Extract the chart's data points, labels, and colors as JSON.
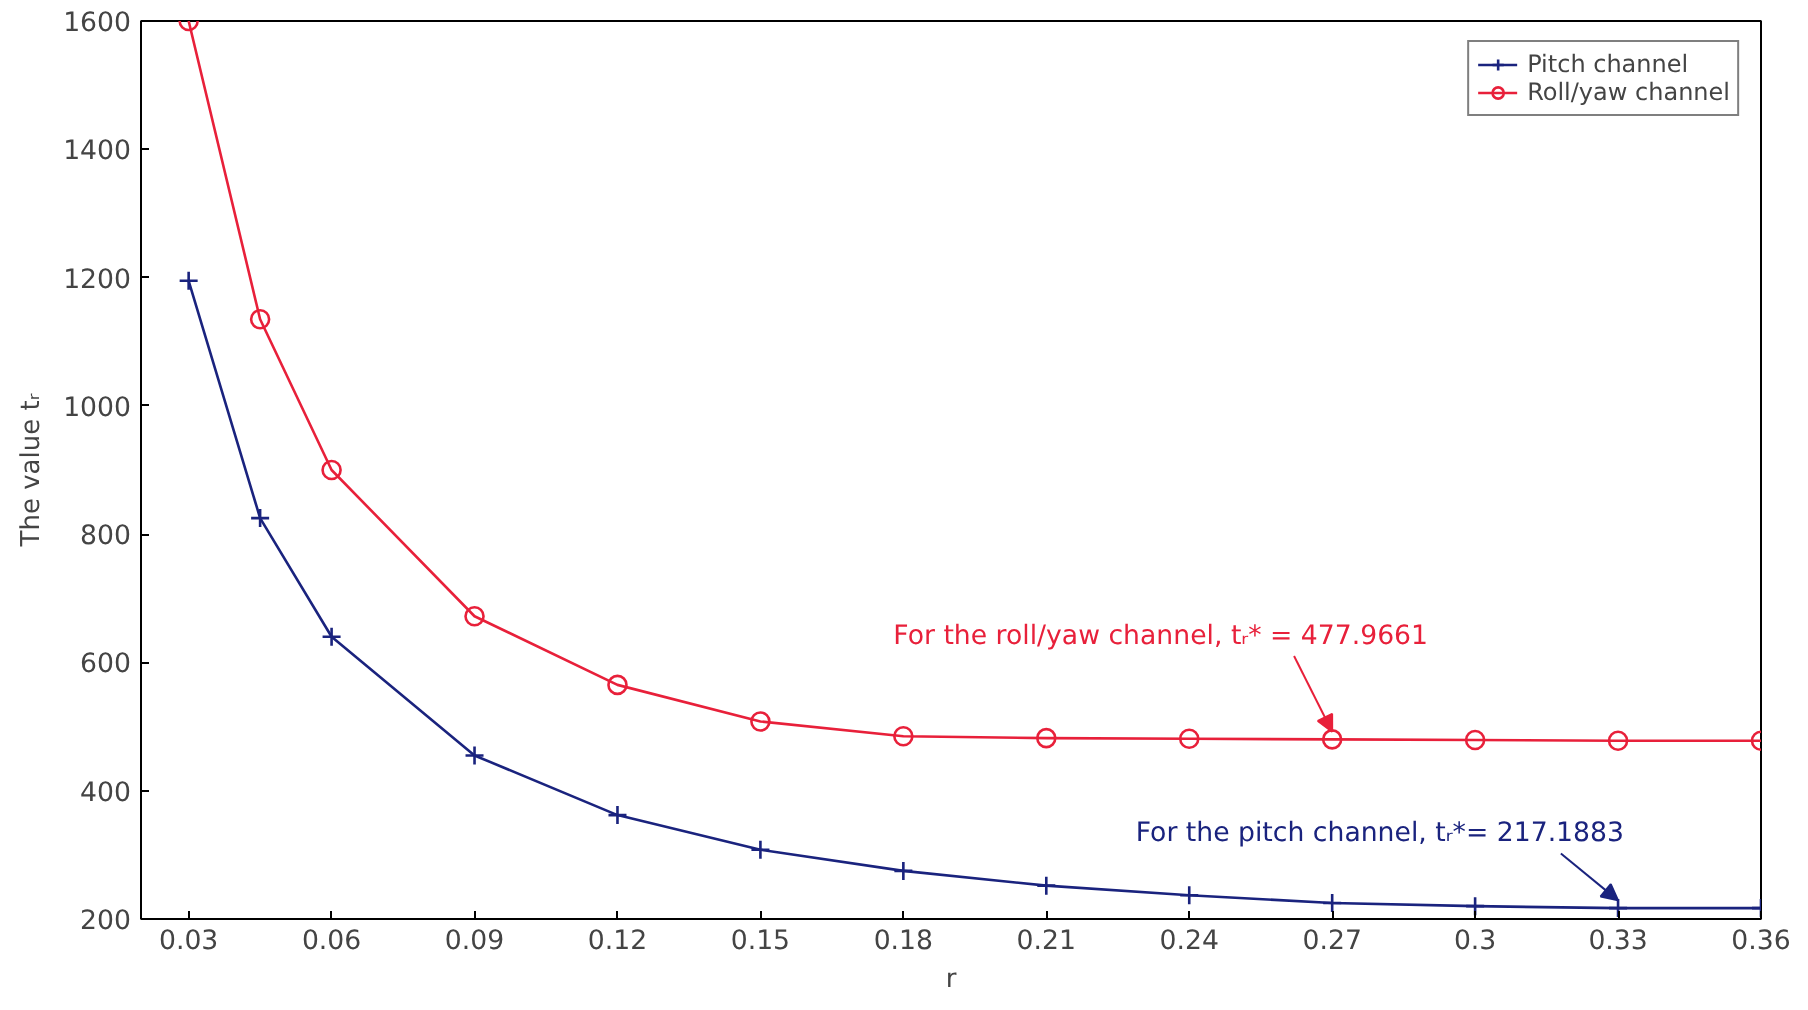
{
  "chart_data": {
    "type": "line",
    "xlabel": "r",
    "ylabel": "The value tᵣ",
    "x": [
      0.03,
      0.045,
      0.06,
      0.09,
      0.12,
      0.15,
      0.18,
      0.21,
      0.24,
      0.27,
      0.3,
      0.33,
      0.36
    ],
    "series": [
      {
        "name": "Pitch channel",
        "color": "#1a237e",
        "marker": "cross",
        "values": [
          1195,
          825,
          640,
          455,
          362,
          308,
          275,
          252,
          237,
          225,
          220,
          217,
          217
        ]
      },
      {
        "name": "Roll/yaw channel",
        "color": "#e8203a",
        "marker": "circle",
        "values": [
          1600,
          1135,
          900,
          672,
          565,
          508,
          485,
          482,
          481,
          480,
          479,
          478,
          478
        ]
      }
    ],
    "xlim": [
      0.02,
      0.36
    ],
    "ylim": [
      200,
      1600
    ],
    "xticks": [
      0.03,
      0.06,
      0.09,
      0.12,
      0.15,
      0.18,
      0.21,
      0.24,
      0.27,
      0.3,
      0.33,
      0.36
    ],
    "yticks": [
      200,
      400,
      600,
      800,
      1000,
      1200,
      1400,
      1600
    ],
    "annotations": [
      {
        "text": "For the roll/yaw channel, tᵣ* = 477.9661",
        "x": 0.27,
        "y": 480
      },
      {
        "text": "For the pitch channel, tᵣ*= 217.1883",
        "x": 0.33,
        "y": 217
      }
    ],
    "grid": false,
    "legend": "top right",
    "line_style": "solid"
  }
}
